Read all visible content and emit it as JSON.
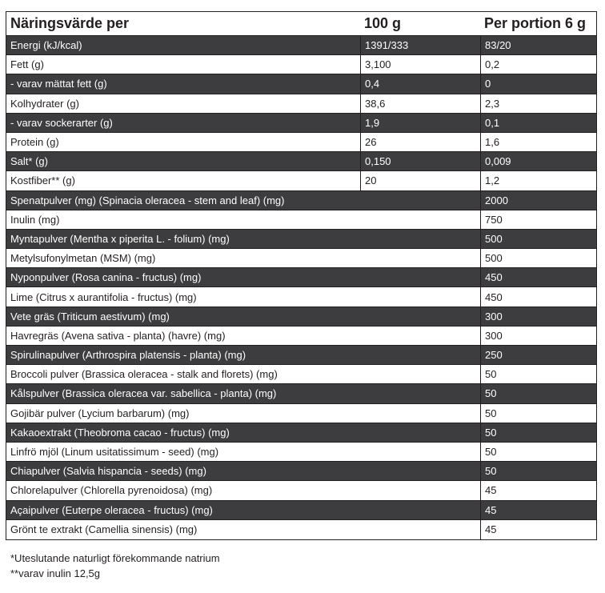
{
  "header": {
    "col1": "Näringsvärde per",
    "col2": "100 g",
    "col3": "Per portion 6 g"
  },
  "rows": [
    {
      "name": "Energi (kJ/kcal)",
      "per100": "1391/333",
      "portion": "83/20"
    },
    {
      "name": "Fett (g)",
      "per100": "3,100",
      "portion": "0,2"
    },
    {
      "name": "- varav mättat fett (g)",
      "per100": "0,4",
      "portion": "0"
    },
    {
      "name": "Kolhydrater (g)",
      "per100": "38,6",
      "portion": "2,3"
    },
    {
      "name": "- varav sockerarter (g)",
      "per100": "1,9",
      "portion": "0,1"
    },
    {
      "name": "Protein (g)",
      "per100": "26",
      "portion": "1,6"
    },
    {
      "name": "Salt* (g)",
      "per100": "0,150",
      "portion": "0,009"
    },
    {
      "name": "Kostfiber** (g)",
      "per100": "20",
      "portion": "1,2"
    },
    {
      "name": "Spenatpulver (mg) (Spinacia oleracea - stem and leaf) (mg)",
      "per100": "",
      "portion": "2000"
    },
    {
      "name": "Inulin (mg)",
      "per100": "",
      "portion": "750"
    },
    {
      "name": "Myntapulver (Mentha x piperita L. - folium) (mg)",
      "per100": "",
      "portion": "500"
    },
    {
      "name": "Metylsufonylmetan (MSM) (mg)",
      "per100": "",
      "portion": "500"
    },
    {
      "name": "Nyponpulver (Rosa canina - fructus) (mg)",
      "per100": "",
      "portion": "450"
    },
    {
      "name": "Lime (Citrus x aurantifolia - fructus) (mg)",
      "per100": "",
      "portion": "450"
    },
    {
      "name": "Vete gräs (Triticum aestivum) (mg)",
      "per100": "",
      "portion": "300"
    },
    {
      "name": "Havregräs (Avena sativa - planta) (havre) (mg)",
      "per100": "",
      "portion": "300"
    },
    {
      "name": "Spirulinapulver (Arthrospira platensis - planta) (mg)",
      "per100": "",
      "portion": "250"
    },
    {
      "name": "Broccoli pulver (Brassica oleracea - stalk and florets) (mg)",
      "per100": "",
      "portion": "50"
    },
    {
      "name": "Kålspulver (Brassica oleracea var. sabellica - planta) (mg)",
      "per100": "",
      "portion": "50"
    },
    {
      "name": "Gojibär pulver (Lycium barbarum) (mg)",
      "per100": "",
      "portion": "50"
    },
    {
      "name": "Kakaoextrakt (Theobroma cacao - fructus) (mg)",
      "per100": "",
      "portion": "50"
    },
    {
      "name": "Linfrö mjöl (Linum usitatissimum - seed) (mg)",
      "per100": "",
      "portion": "50"
    },
    {
      "name": "Chiapulver (Salvia hispancia - seeds) (mg)",
      "per100": "",
      "portion": "50"
    },
    {
      "name": "Chlorelapulver (Chlorella pyrenoidosa) (mg)",
      "per100": "",
      "portion": "45"
    },
    {
      "name": "Açaipulver (Euterpe oleracea - fructus) (mg)",
      "per100": "",
      "portion": "45"
    },
    {
      "name": "Grönt te extrakt (Camellia sinensis) (mg)",
      "per100": "",
      "portion": "45"
    }
  ],
  "notes": {
    "line1": "*Uteslutande naturligt förekommande natrium",
    "line2": "**varav inulin 12,5g"
  },
  "colors": {
    "dark_row": "#3d3d3f",
    "light_row": "#ffffff",
    "text": "#231f20"
  }
}
